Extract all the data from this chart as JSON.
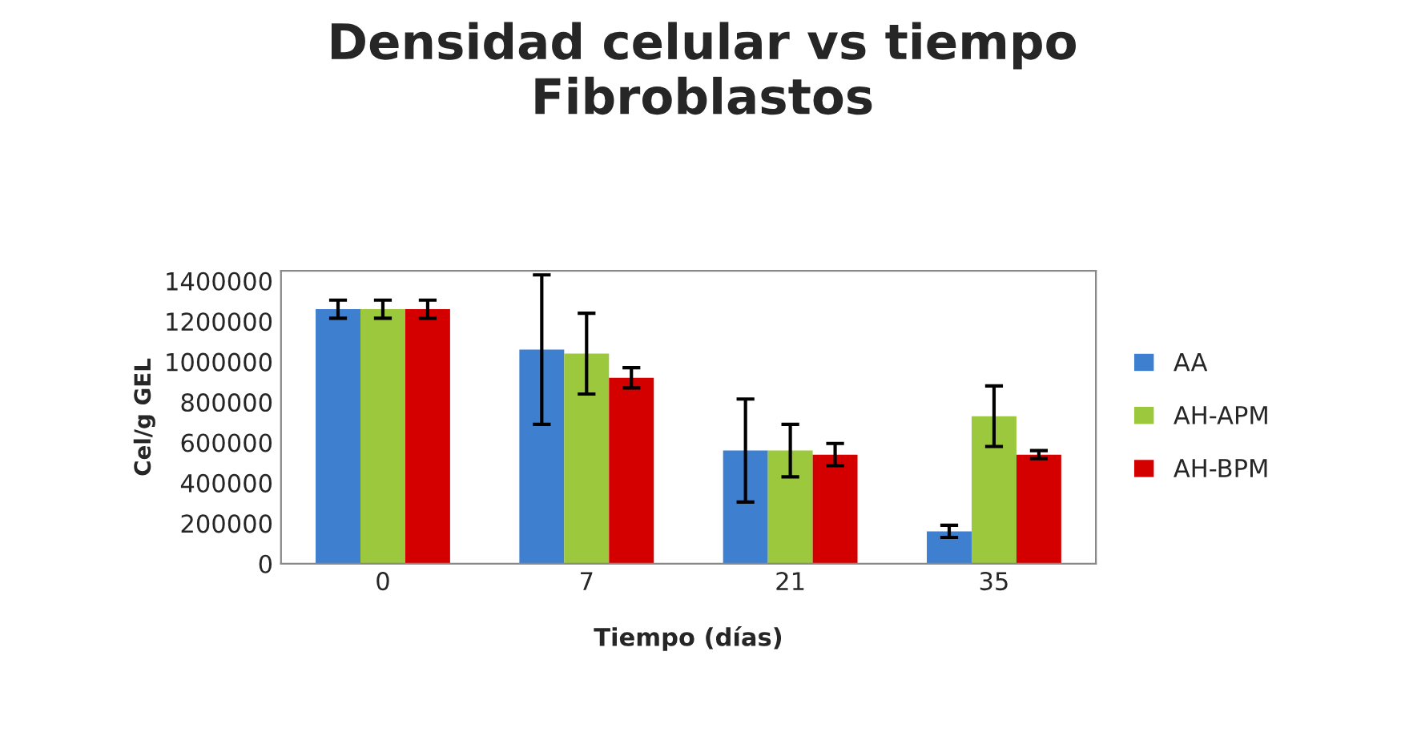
{
  "chart_data": {
    "type": "bar",
    "title": "Densidad celular vs tiempo\nFibroblastos",
    "xlabel": "Tiempo (días)",
    "ylabel": "Cel/g GEL",
    "categories": [
      "0",
      "7",
      "21",
      "35"
    ],
    "series": [
      {
        "name": "AA",
        "color": "#3f7fd0",
        "values": [
          1260000,
          1060000,
          560000,
          160000
        ],
        "errors": [
          45000,
          370000,
          255000,
          30000
        ]
      },
      {
        "name": "AH-APM",
        "color": "#9bc83c",
        "values": [
          1260000,
          1040000,
          560000,
          730000
        ],
        "errors": [
          45000,
          200000,
          130000,
          150000
        ]
      },
      {
        "name": "AH-BPM",
        "color": "#d40000",
        "values": [
          1260000,
          920000,
          540000,
          540000
        ],
        "errors": [
          45000,
          50000,
          55000,
          20000
        ]
      }
    ],
    "ylim": [
      0,
      1450000
    ],
    "yticks": [
      0,
      200000,
      400000,
      600000,
      800000,
      1000000,
      1200000,
      1400000
    ],
    "grid": false,
    "legend": "right"
  }
}
